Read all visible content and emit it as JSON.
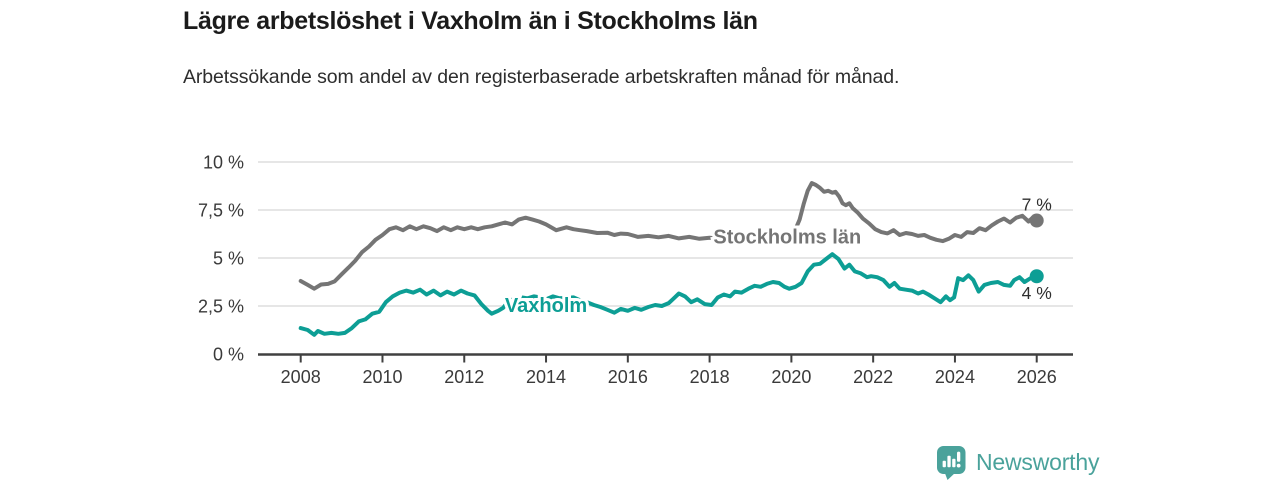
{
  "header": {
    "title": "Lägre arbetslöshet i Vaxholm än i Stockholms län",
    "subtitle": "Arbetssökande som andel av den registerbaserade arbetskraften månad för månad."
  },
  "footer": {
    "brand": "Newsworthy",
    "brand_color": "#4aa29b",
    "logo_icon": "bar-chart-speech-bubble-icon"
  },
  "chart_data": {
    "type": "line",
    "title": "Lägre arbetslöshet i Vaxholm än i Stockholms län",
    "subtitle": "Arbetssökande som andel av den registerbaserade arbetskraften månad för månad.",
    "grid": true,
    "legend_position": "inline-labels",
    "style": {
      "grid_color": "#dedede",
      "axis_color": "#404040",
      "axis_text_color": "#3a3a3a",
      "end_label_color": "#2f2f2f",
      "background": "#ffffff"
    },
    "x_axis": {
      "ticks": [
        2008,
        2010,
        2012,
        2014,
        2016,
        2018,
        2020,
        2022,
        2024,
        2026
      ],
      "range": [
        2007.0,
        2026.9
      ]
    },
    "y_axis": {
      "unit": "%",
      "range": [
        0,
        10
      ],
      "ticks": [
        {
          "value": 0,
          "label": "0 %"
        },
        {
          "value": 2.5,
          "label": "2,5 %"
        },
        {
          "value": 5,
          "label": "5 %"
        },
        {
          "value": 7.5,
          "label": "7,5 %"
        },
        {
          "value": 10,
          "label": "10 %"
        }
      ]
    },
    "series": [
      {
        "name": "Stockholms län",
        "label": "Stockholms län",
        "color": "#757575",
        "end_label": "7 %",
        "end_label_side": "above",
        "label_at": [
          2019.9,
          6.13
        ],
        "points": [
          [
            2008.0,
            3.8
          ],
          [
            2008.17,
            3.6
          ],
          [
            2008.33,
            3.4
          ],
          [
            2008.5,
            3.62
          ],
          [
            2008.67,
            3.65
          ],
          [
            2008.83,
            3.78
          ],
          [
            2009.0,
            4.15
          ],
          [
            2009.17,
            4.5
          ],
          [
            2009.33,
            4.85
          ],
          [
            2009.5,
            5.3
          ],
          [
            2009.67,
            5.6
          ],
          [
            2009.83,
            5.95
          ],
          [
            2010.0,
            6.2
          ],
          [
            2010.17,
            6.5
          ],
          [
            2010.33,
            6.6
          ],
          [
            2010.5,
            6.45
          ],
          [
            2010.67,
            6.65
          ],
          [
            2010.83,
            6.5
          ],
          [
            2011.0,
            6.65
          ],
          [
            2011.17,
            6.55
          ],
          [
            2011.33,
            6.4
          ],
          [
            2011.5,
            6.6
          ],
          [
            2011.67,
            6.45
          ],
          [
            2011.83,
            6.6
          ],
          [
            2012.0,
            6.5
          ],
          [
            2012.17,
            6.6
          ],
          [
            2012.33,
            6.5
          ],
          [
            2012.5,
            6.6
          ],
          [
            2012.67,
            6.65
          ],
          [
            2012.83,
            6.75
          ],
          [
            2013.0,
            6.85
          ],
          [
            2013.17,
            6.75
          ],
          [
            2013.33,
            7.0
          ],
          [
            2013.5,
            7.1
          ],
          [
            2013.67,
            7.0
          ],
          [
            2013.83,
            6.9
          ],
          [
            2014.0,
            6.75
          ],
          [
            2014.25,
            6.45
          ],
          [
            2014.5,
            6.6
          ],
          [
            2014.67,
            6.5
          ],
          [
            2014.83,
            6.45
          ],
          [
            2015.0,
            6.4
          ],
          [
            2015.25,
            6.3
          ],
          [
            2015.5,
            6.32
          ],
          [
            2015.67,
            6.2
          ],
          [
            2015.83,
            6.27
          ],
          [
            2016.0,
            6.25
          ],
          [
            2016.25,
            6.1
          ],
          [
            2016.5,
            6.15
          ],
          [
            2016.75,
            6.08
          ],
          [
            2017.0,
            6.15
          ],
          [
            2017.25,
            6.02
          ],
          [
            2017.5,
            6.1
          ],
          [
            2017.75,
            6.0
          ],
          [
            2018.0,
            6.05
          ],
          [
            2018.25,
            6.0
          ],
          [
            2018.5,
            6.02
          ],
          [
            2018.75,
            5.95
          ],
          [
            2019.0,
            6.0
          ],
          [
            2019.25,
            6.0
          ],
          [
            2019.5,
            6.05
          ],
          [
            2019.75,
            6.1
          ],
          [
            2020.0,
            6.15
          ],
          [
            2020.1,
            6.5
          ],
          [
            2020.2,
            7.0
          ],
          [
            2020.3,
            7.8
          ],
          [
            2020.4,
            8.5
          ],
          [
            2020.5,
            8.9
          ],
          [
            2020.6,
            8.8
          ],
          [
            2020.7,
            8.65
          ],
          [
            2020.8,
            8.45
          ],
          [
            2020.9,
            8.5
          ],
          [
            2021.0,
            8.4
          ],
          [
            2021.08,
            8.45
          ],
          [
            2021.17,
            8.2
          ],
          [
            2021.25,
            7.85
          ],
          [
            2021.33,
            7.75
          ],
          [
            2021.42,
            7.85
          ],
          [
            2021.5,
            7.6
          ],
          [
            2021.63,
            7.35
          ],
          [
            2021.75,
            7.05
          ],
          [
            2021.9,
            6.8
          ],
          [
            2022.05,
            6.5
          ],
          [
            2022.2,
            6.35
          ],
          [
            2022.35,
            6.28
          ],
          [
            2022.5,
            6.45
          ],
          [
            2022.65,
            6.2
          ],
          [
            2022.8,
            6.3
          ],
          [
            2022.95,
            6.25
          ],
          [
            2023.1,
            6.15
          ],
          [
            2023.25,
            6.2
          ],
          [
            2023.4,
            6.05
          ],
          [
            2023.55,
            5.95
          ],
          [
            2023.7,
            5.88
          ],
          [
            2023.85,
            6.0
          ],
          [
            2024.0,
            6.2
          ],
          [
            2024.15,
            6.1
          ],
          [
            2024.3,
            6.35
          ],
          [
            2024.45,
            6.3
          ],
          [
            2024.6,
            6.55
          ],
          [
            2024.75,
            6.45
          ],
          [
            2024.9,
            6.7
          ],
          [
            2025.05,
            6.9
          ],
          [
            2025.2,
            7.05
          ],
          [
            2025.35,
            6.85
          ],
          [
            2025.5,
            7.1
          ],
          [
            2025.65,
            7.2
          ],
          [
            2025.8,
            6.9
          ],
          [
            2025.9,
            7.1
          ],
          [
            2026.0,
            6.95
          ]
        ]
      },
      {
        "name": "Vaxholm",
        "label": "Vaxholm",
        "color": "#0d9e95",
        "end_label": "4 %",
        "end_label_side": "below",
        "label_at": [
          2014.0,
          2.55
        ],
        "points": [
          [
            2008.0,
            1.35
          ],
          [
            2008.17,
            1.25
          ],
          [
            2008.33,
            1.0
          ],
          [
            2008.42,
            1.2
          ],
          [
            2008.58,
            1.05
          ],
          [
            2008.75,
            1.1
          ],
          [
            2008.92,
            1.05
          ],
          [
            2009.08,
            1.1
          ],
          [
            2009.25,
            1.35
          ],
          [
            2009.42,
            1.7
          ],
          [
            2009.58,
            1.8
          ],
          [
            2009.75,
            2.1
          ],
          [
            2009.92,
            2.2
          ],
          [
            2010.08,
            2.7
          ],
          [
            2010.25,
            3.0
          ],
          [
            2010.42,
            3.2
          ],
          [
            2010.58,
            3.3
          ],
          [
            2010.75,
            3.2
          ],
          [
            2010.92,
            3.35
          ],
          [
            2011.08,
            3.1
          ],
          [
            2011.25,
            3.3
          ],
          [
            2011.42,
            3.05
          ],
          [
            2011.58,
            3.25
          ],
          [
            2011.75,
            3.1
          ],
          [
            2011.92,
            3.3
          ],
          [
            2012.08,
            3.15
          ],
          [
            2012.25,
            3.05
          ],
          [
            2012.42,
            2.6
          ],
          [
            2012.58,
            2.25
          ],
          [
            2012.67,
            2.1
          ],
          [
            2012.83,
            2.25
          ],
          [
            2012.95,
            2.4
          ],
          [
            2013.1,
            2.8
          ],
          [
            2013.25,
            2.85
          ],
          [
            2013.4,
            2.95
          ],
          [
            2013.55,
            2.9
          ],
          [
            2013.7,
            3.0
          ],
          [
            2013.85,
            2.95
          ],
          [
            2014.0,
            2.85
          ],
          [
            2014.17,
            3.0
          ],
          [
            2014.33,
            2.9
          ],
          [
            2014.5,
            2.92
          ],
          [
            2014.67,
            2.95
          ],
          [
            2014.83,
            2.8
          ],
          [
            2015.0,
            2.7
          ],
          [
            2015.17,
            2.55
          ],
          [
            2015.33,
            2.45
          ],
          [
            2015.5,
            2.3
          ],
          [
            2015.67,
            2.15
          ],
          [
            2015.83,
            2.35
          ],
          [
            2016.0,
            2.25
          ],
          [
            2016.17,
            2.4
          ],
          [
            2016.33,
            2.3
          ],
          [
            2016.5,
            2.45
          ],
          [
            2016.67,
            2.55
          ],
          [
            2016.83,
            2.5
          ],
          [
            2017.0,
            2.65
          ],
          [
            2017.1,
            2.85
          ],
          [
            2017.25,
            3.15
          ],
          [
            2017.4,
            3.0
          ],
          [
            2017.55,
            2.7
          ],
          [
            2017.7,
            2.85
          ],
          [
            2017.88,
            2.6
          ],
          [
            2018.05,
            2.55
          ],
          [
            2018.2,
            2.95
          ],
          [
            2018.35,
            3.1
          ],
          [
            2018.5,
            3.0
          ],
          [
            2018.62,
            3.25
          ],
          [
            2018.78,
            3.2
          ],
          [
            2018.95,
            3.4
          ],
          [
            2019.1,
            3.55
          ],
          [
            2019.25,
            3.5
          ],
          [
            2019.4,
            3.65
          ],
          [
            2019.55,
            3.75
          ],
          [
            2019.7,
            3.7
          ],
          [
            2019.83,
            3.5
          ],
          [
            2019.95,
            3.4
          ],
          [
            2020.1,
            3.5
          ],
          [
            2020.25,
            3.7
          ],
          [
            2020.4,
            4.3
          ],
          [
            2020.55,
            4.65
          ],
          [
            2020.7,
            4.7
          ],
          [
            2020.85,
            4.95
          ],
          [
            2021.0,
            5.2
          ],
          [
            2021.15,
            4.95
          ],
          [
            2021.3,
            4.45
          ],
          [
            2021.42,
            4.65
          ],
          [
            2021.55,
            4.3
          ],
          [
            2021.7,
            4.2
          ],
          [
            2021.85,
            4.0
          ],
          [
            2021.95,
            4.05
          ],
          [
            2022.1,
            4.0
          ],
          [
            2022.25,
            3.85
          ],
          [
            2022.4,
            3.5
          ],
          [
            2022.52,
            3.7
          ],
          [
            2022.65,
            3.4
          ],
          [
            2022.8,
            3.35
          ],
          [
            2022.95,
            3.3
          ],
          [
            2023.1,
            3.15
          ],
          [
            2023.22,
            3.25
          ],
          [
            2023.35,
            3.1
          ],
          [
            2023.5,
            2.9
          ],
          [
            2023.65,
            2.7
          ],
          [
            2023.78,
            3.0
          ],
          [
            2023.88,
            2.8
          ],
          [
            2023.98,
            2.95
          ],
          [
            2024.08,
            3.95
          ],
          [
            2024.2,
            3.85
          ],
          [
            2024.33,
            4.1
          ],
          [
            2024.45,
            3.85
          ],
          [
            2024.58,
            3.25
          ],
          [
            2024.72,
            3.6
          ],
          [
            2024.88,
            3.7
          ],
          [
            2025.05,
            3.75
          ],
          [
            2025.2,
            3.6
          ],
          [
            2025.35,
            3.55
          ],
          [
            2025.45,
            3.85
          ],
          [
            2025.58,
            4.0
          ],
          [
            2025.7,
            3.75
          ],
          [
            2025.85,
            3.95
          ],
          [
            2026.0,
            4.05
          ]
        ]
      }
    ]
  }
}
